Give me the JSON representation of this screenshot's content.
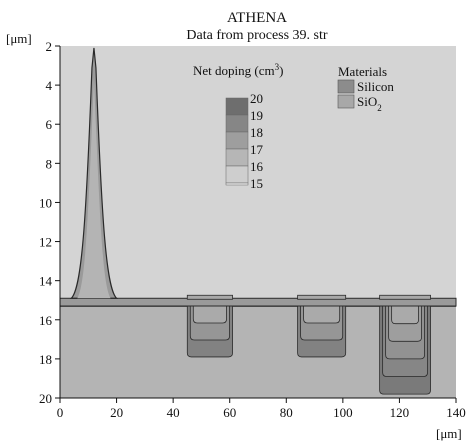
{
  "chart_data": {
    "type": "heatmap",
    "title": "ATHENA",
    "subtitle": "Data from process 39. str",
    "xlabel": "[μm]",
    "ylabel": "[μm]",
    "xlim": [
      0,
      140
    ],
    "ylim": [
      2,
      20
    ],
    "y_inverted": true,
    "grid": false,
    "x_ticks": [
      0,
      20,
      40,
      60,
      80,
      100,
      120,
      140
    ],
    "y_ticks": [
      2,
      4,
      6,
      8,
      10,
      12,
      14,
      16,
      18,
      20
    ],
    "x_tick_labels": [
      "0",
      "20",
      "40",
      "60",
      "80",
      "100",
      "120",
      "140"
    ],
    "y_tick_labels": [
      "2",
      "4",
      "6",
      "8",
      "10",
      "12",
      "14",
      "16",
      "18",
      "20"
    ],
    "colorbar": {
      "title_pre": "Net doping (cm",
      "title_sup": "3",
      "title_post": ")",
      "levels": [
        20,
        19,
        18,
        17,
        16,
        15
      ],
      "level_labels": [
        "20",
        "19",
        "18",
        "17",
        "16",
        "15"
      ]
    },
    "legend": {
      "title": "Materials",
      "items": [
        {
          "label": "Silicon",
          "color": "#8c8c8c"
        },
        {
          "label_main": "SiO",
          "label_sub": "2",
          "color": "#a8a8a8"
        }
      ]
    },
    "structures": {
      "surface_depth": 15.3,
      "oxide_thickness": 0.4,
      "peak": {
        "x_center": 12,
        "x_half_width": 8,
        "top_depth": 2.1
      },
      "diffusion_regions": [
        {
          "x_from": 45,
          "x_to": 61,
          "depth": 17.9,
          "levels": 3
        },
        {
          "x_from": 84,
          "x_to": 101,
          "depth": 17.9,
          "levels": 3
        },
        {
          "x_from": 113,
          "x_to": 131,
          "depth": 19.8,
          "levels": 5
        }
      ]
    },
    "colors": {
      "background_fill": "#d4d4d4",
      "silicon_fill": "#b4b4b4",
      "oxide_fill": "#9a9a9a",
      "outline": "#2a2a2a",
      "doping_dark": "#6e6e6e",
      "doping_light": "#a6a6a6"
    }
  }
}
